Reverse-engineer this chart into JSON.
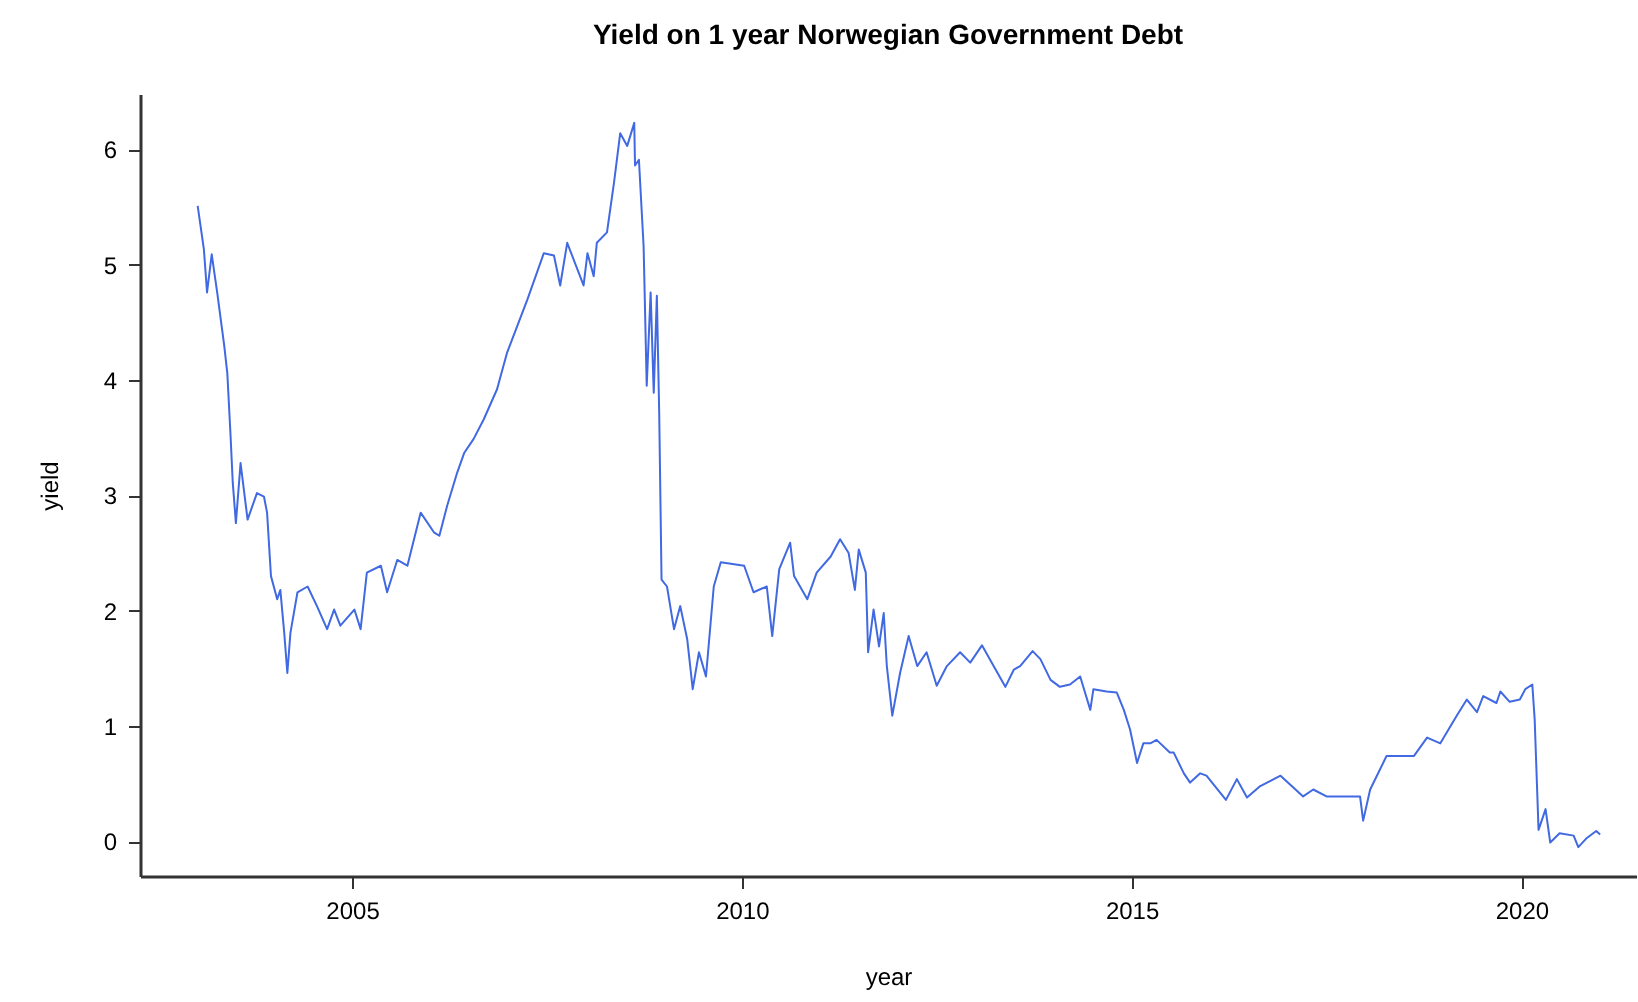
{
  "chart_data": {
    "type": "line",
    "title": "Yield on 1 year Norwegian Government Debt",
    "xlabel": "year",
    "ylabel": "yield",
    "x": [
      2003.02,
      2003.1,
      2003.14,
      2003.2,
      2003.27,
      2003.36,
      2003.4,
      2003.44,
      2003.47,
      2003.51,
      2003.57,
      2003.66,
      2003.78,
      2003.87,
      2003.91,
      2003.96,
      2004.04,
      2004.08,
      2004.13,
      2004.17,
      2004.21,
      2004.3,
      2004.43,
      2004.55,
      2004.68,
      2004.77,
      2004.85,
      2005.03,
      2005.11,
      2005.19,
      2005.37,
      2005.45,
      2005.58,
      2005.71,
      2005.88,
      2006.05,
      2006.12,
      2006.22,
      2006.35,
      2006.44,
      2006.56,
      2006.69,
      2006.86,
      2006.99,
      2007.12,
      2007.25,
      2007.46,
      2007.59,
      2007.67,
      2007.76,
      2007.97,
      2008.02,
      2008.1,
      2008.14,
      2008.27,
      2008.36,
      2008.44,
      2008.53,
      2008.62,
      2008.63,
      2008.68,
      2008.74,
      2008.78,
      2008.83,
      2008.87,
      2008.91,
      2008.94,
      2008.97,
      2009.04,
      2009.13,
      2009.21,
      2009.3,
      2009.37,
      2009.45,
      2009.54,
      2009.64,
      2009.73,
      2010.03,
      2010.15,
      2010.32,
      2010.39,
      2010.48,
      2010.62,
      2010.67,
      2010.84,
      2010.96,
      2011.14,
      2011.26,
      2011.37,
      2011.45,
      2011.5,
      2011.59,
      2011.62,
      2011.69,
      2011.76,
      2011.82,
      2011.86,
      2011.93,
      2012.03,
      2012.14,
      2012.25,
      2012.37,
      2012.5,
      2012.63,
      2012.8,
      2012.93,
      2013.08,
      2013.23,
      2013.38,
      2013.49,
      2013.57,
      2013.73,
      2013.83,
      2013.96,
      2014.08,
      2014.21,
      2014.34,
      2014.47,
      2014.51,
      2014.68,
      2014.81,
      2014.9,
      2014.98,
      2015.07,
      2015.15,
      2015.24,
      2015.32,
      2015.49,
      2015.54,
      2015.67,
      2015.75,
      2015.88,
      2015.96,
      2016.21,
      2016.35,
      2016.48,
      2016.65,
      2016.91,
      2017.2,
      2017.33,
      2017.5,
      2017.76,
      2017.93,
      2017.97,
      2018.06,
      2018.27,
      2018.44,
      2018.62,
      2018.79,
      2018.96,
      2019.17,
      2019.3,
      2019.43,
      2019.51,
      2019.68,
      2019.73,
      2019.85,
      2019.98,
      2020.05,
      2020.14,
      2020.17,
      2020.22,
      2020.31,
      2020.37,
      2020.49,
      2020.67,
      2020.73,
      2020.84,
      2020.96,
      2021.01
    ],
    "series": [
      {
        "color": "#4169e1",
        "values": [
          5.51,
          5.13,
          4.76,
          5.09,
          4.76,
          4.3,
          4.06,
          3.54,
          3.11,
          2.76,
          3.28,
          2.79,
          3.02,
          2.99,
          2.85,
          2.3,
          2.1,
          2.18,
          1.81,
          1.46,
          1.81,
          2.16,
          2.21,
          2.04,
          1.84,
          2.01,
          1.87,
          2.01,
          1.84,
          2.33,
          2.39,
          2.16,
          2.44,
          2.39,
          2.85,
          2.68,
          2.65,
          2.91,
          3.2,
          3.37,
          3.49,
          3.66,
          3.92,
          4.24,
          4.47,
          4.7,
          5.1,
          5.08,
          4.82,
          5.19,
          4.82,
          5.1,
          4.9,
          5.19,
          5.28,
          5.71,
          6.14,
          6.03,
          6.23,
          5.86,
          5.91,
          5.16,
          3.95,
          4.76,
          3.89,
          4.73,
          3.72,
          2.27,
          2.21,
          1.84,
          2.04,
          1.75,
          1.32,
          1.64,
          1.43,
          2.21,
          2.42,
          2.39,
          2.16,
          2.21,
          1.78,
          2.36,
          2.59,
          2.3,
          2.1,
          2.33,
          2.47,
          2.62,
          2.5,
          2.18,
          2.53,
          2.33,
          1.64,
          2.01,
          1.69,
          1.98,
          1.52,
          1.09,
          1.46,
          1.78,
          1.52,
          1.64,
          1.35,
          1.52,
          1.64,
          1.55,
          1.7,
          1.52,
          1.34,
          1.49,
          1.52,
          1.65,
          1.58,
          1.4,
          1.34,
          1.36,
          1.43,
          1.14,
          1.32,
          1.3,
          1.29,
          1.14,
          0.97,
          0.68,
          0.85,
          0.85,
          0.88,
          0.77,
          0.77,
          0.59,
          0.51,
          0.59,
          0.57,
          0.36,
          0.54,
          0.38,
          0.48,
          0.57,
          0.39,
          0.45,
          0.39,
          0.39,
          0.39,
          0.18,
          0.45,
          0.74,
          0.74,
          0.74,
          0.9,
          0.85,
          1.09,
          1.23,
          1.12,
          1.26,
          1.2,
          1.3,
          1.21,
          1.23,
          1.32,
          1.36,
          1.06,
          0.1,
          0.28,
          -0.01,
          0.07,
          0.05,
          -0.05,
          0.03,
          0.09,
          0.06
        ]
      }
    ],
    "xlim": [
      2002.28,
      2021.47
    ],
    "ylim": [
      -0.3,
      6.48
    ],
    "xticks": [
      2005,
      2010,
      2015,
      2020
    ],
    "yticks": [
      0,
      1,
      2,
      3,
      4,
      5,
      6
    ]
  }
}
